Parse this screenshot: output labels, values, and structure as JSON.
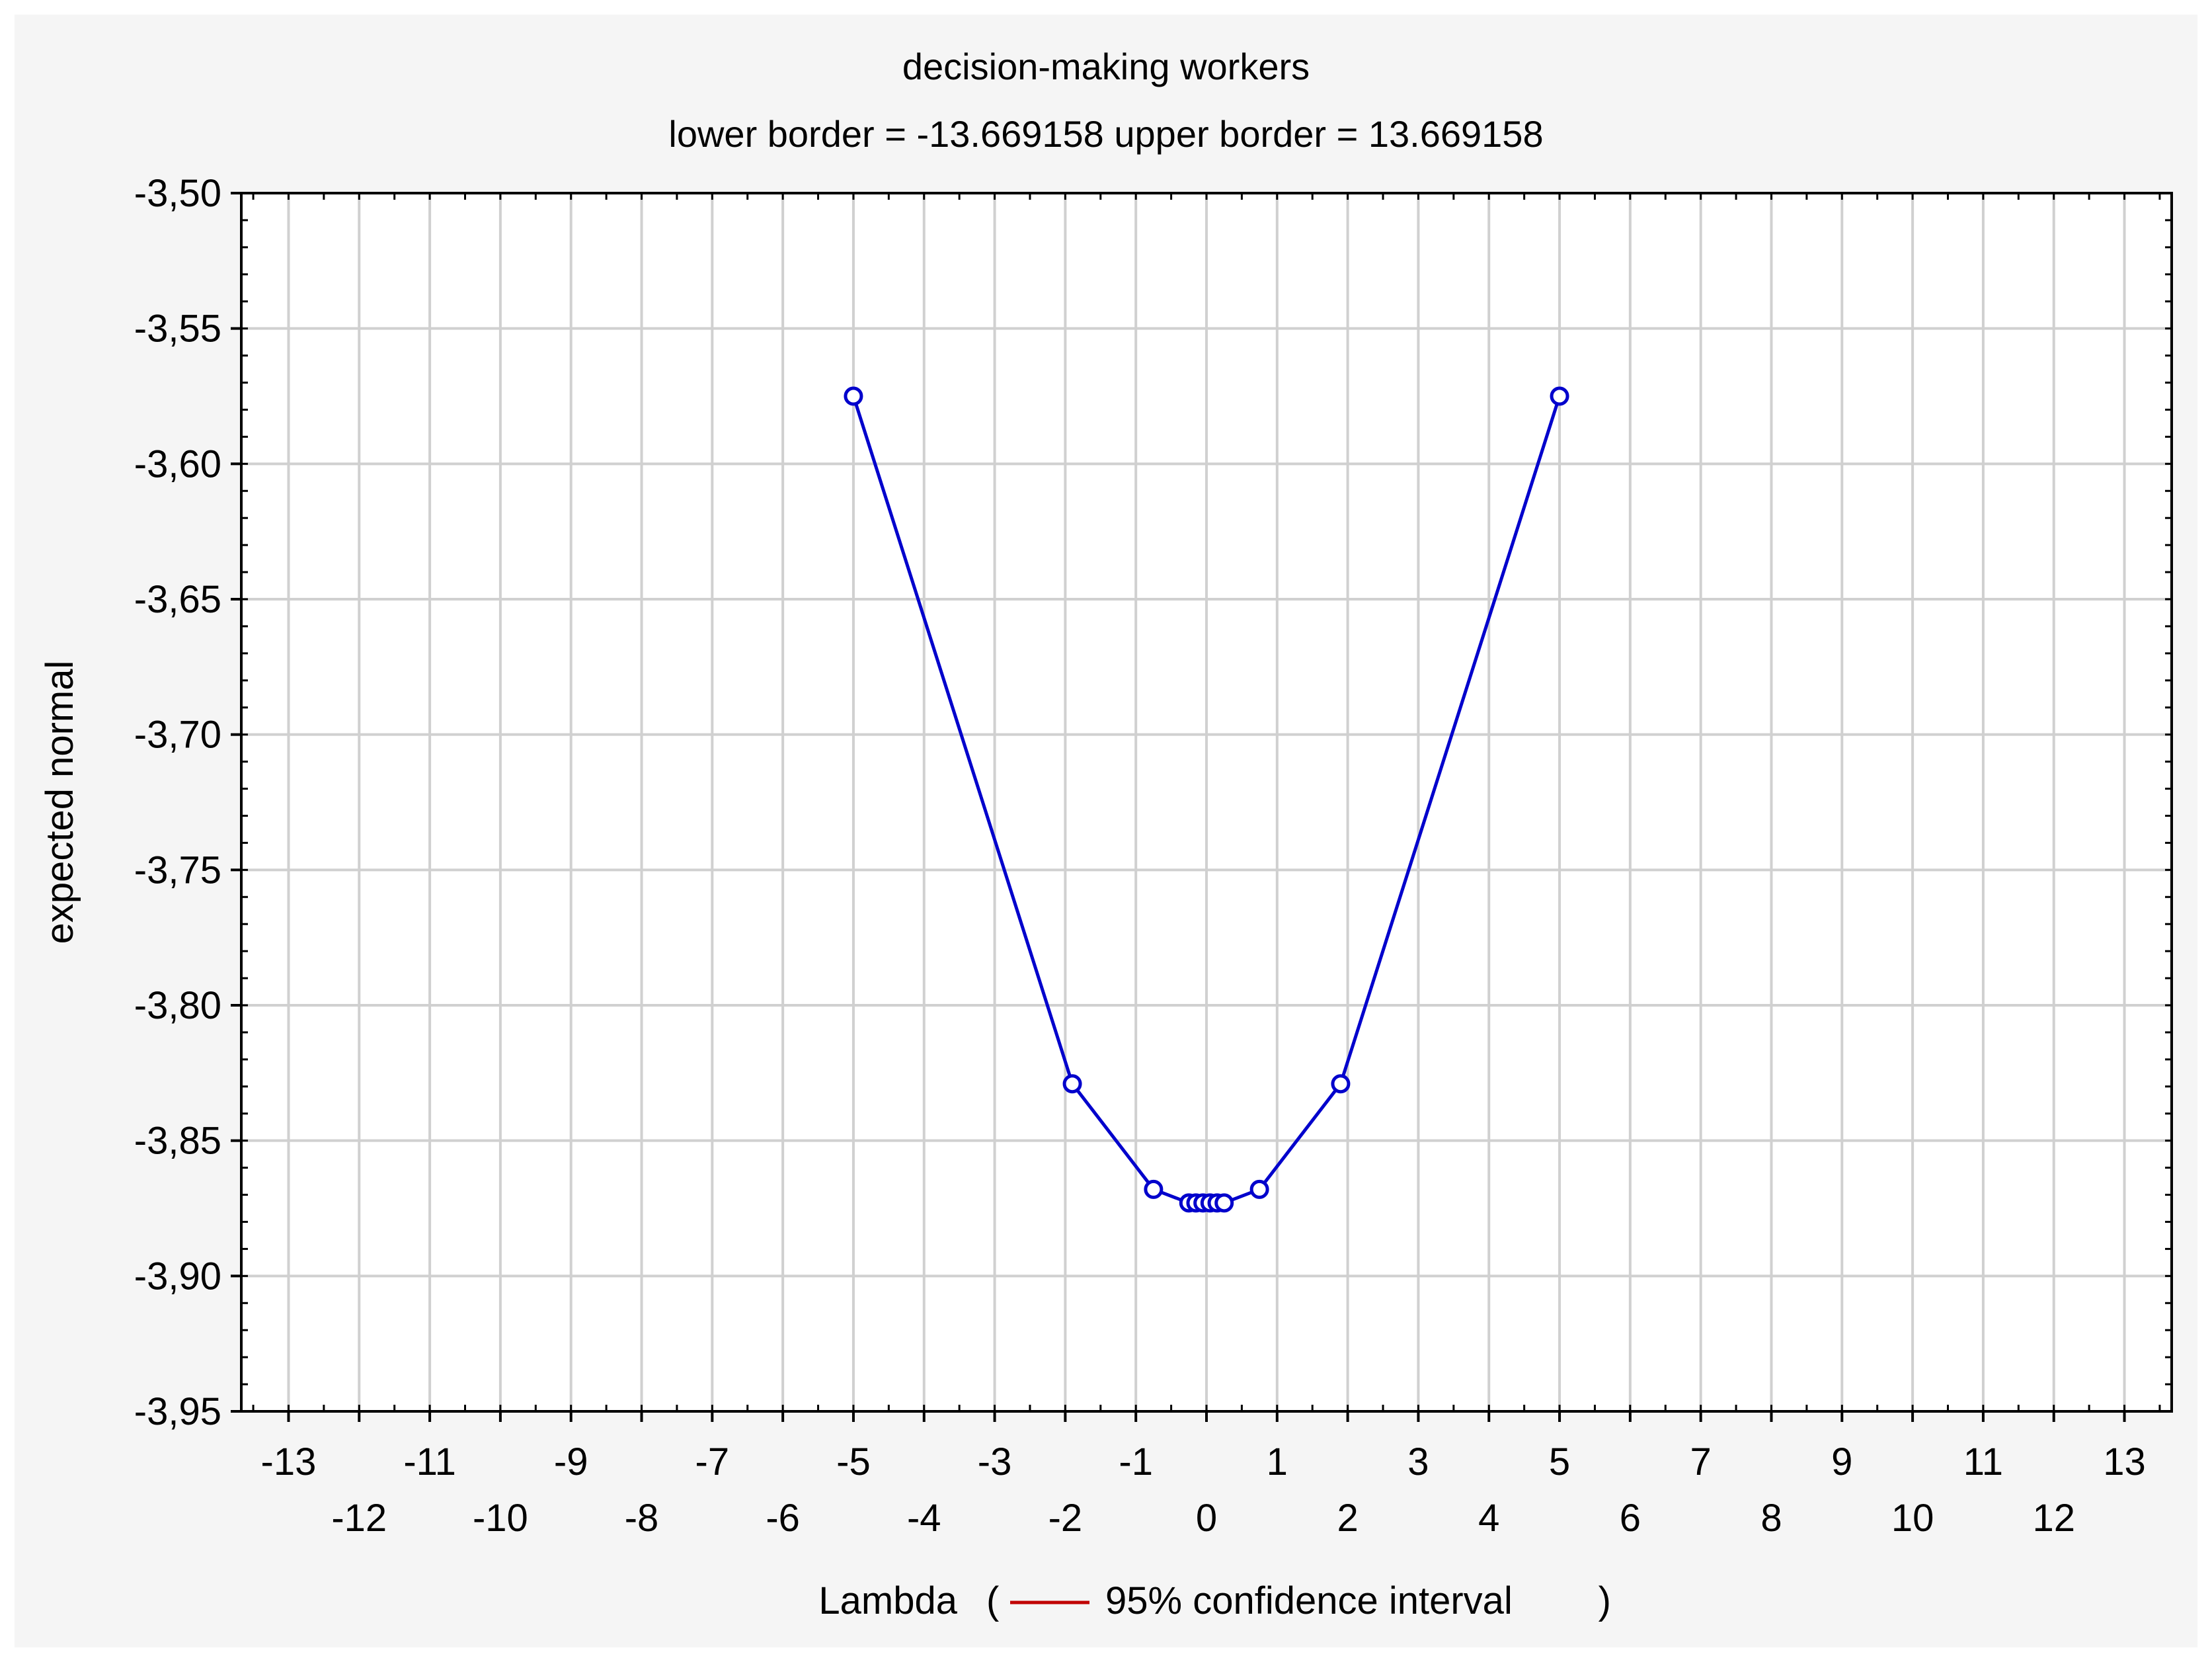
{
  "chart_data": {
    "type": "line",
    "title": "decision-making workers",
    "subtitle": "lower border = -13.669158  upper border = 13.669158",
    "xlabel": "Lambda",
    "xlabel_open": "(",
    "xlabel_close": ")",
    "ylabel": "expected normal",
    "legend_label": "95% confidence interval",
    "xlim": [
      -13.669158,
      13.669158
    ],
    "ylim": [
      -3.95,
      -3.5
    ],
    "x_ticks_upper": [
      -13,
      -11,
      -9,
      -7,
      -5,
      -3,
      -1,
      1,
      3,
      5,
      7,
      9,
      11,
      13
    ],
    "x_ticks_lower": [
      -12,
      -10,
      -8,
      -6,
      -4,
      -2,
      0,
      2,
      4,
      6,
      8,
      10,
      12
    ],
    "y_ticks": [
      {
        "value": -3.5,
        "label": "-3,50"
      },
      {
        "value": -3.55,
        "label": "-3,55"
      },
      {
        "value": -3.6,
        "label": "-3,60"
      },
      {
        "value": -3.65,
        "label": "-3,65"
      },
      {
        "value": -3.7,
        "label": "-3,70"
      },
      {
        "value": -3.75,
        "label": "-3,75"
      },
      {
        "value": -3.8,
        "label": "-3,80"
      },
      {
        "value": -3.85,
        "label": "-3,85"
      },
      {
        "value": -3.9,
        "label": "-3,90"
      },
      {
        "value": -3.95,
        "label": "-3,95"
      }
    ],
    "grid": true,
    "series": [
      {
        "color": "#0000cc",
        "marker": "circle",
        "x": [
          -5,
          -1.9,
          -0.75,
          -0.25,
          -0.15,
          -0.05,
          0.05,
          0.15,
          0.25,
          0.75,
          1.9,
          5
        ],
        "y": [
          -3.575,
          -3.829,
          -3.868,
          -3.873,
          -3.873,
          -3.873,
          -3.873,
          -3.873,
          -3.873,
          -3.868,
          -3.829,
          -3.575
        ]
      }
    ],
    "confidence_interval_color": "#c00000"
  }
}
